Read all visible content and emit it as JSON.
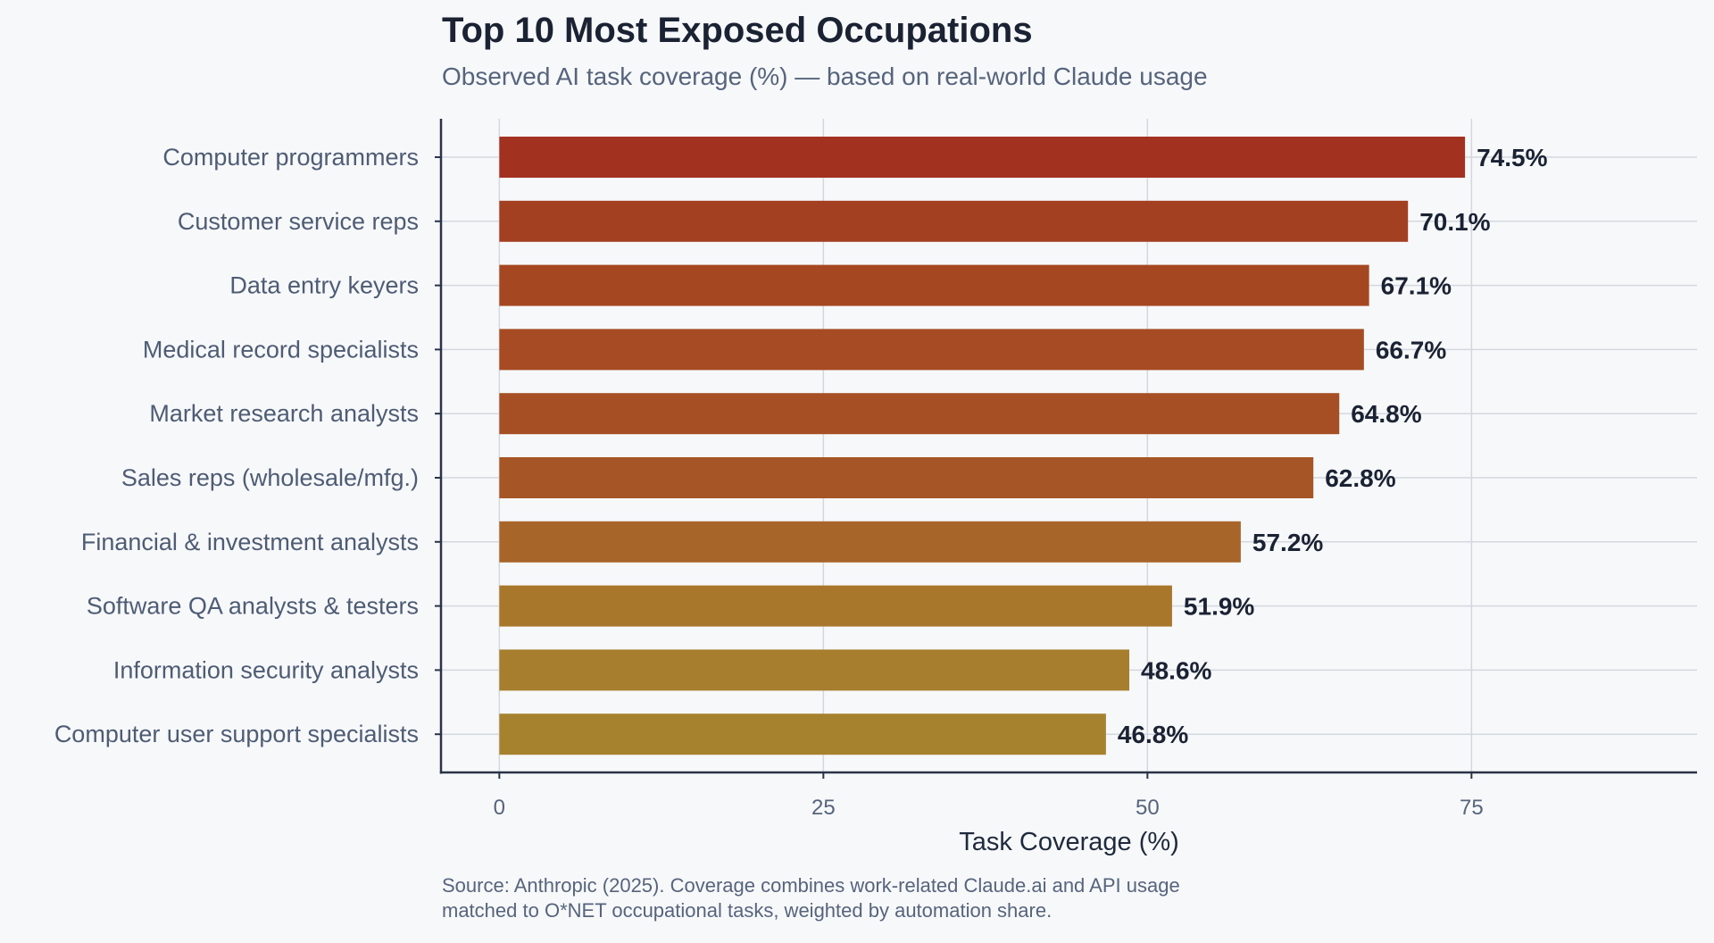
{
  "chart_data": {
    "type": "bar",
    "orientation": "horizontal",
    "title": "Top 10 Most Exposed Occupations",
    "subtitle": "Observed AI task coverage (%) — based on real-world Claude usage",
    "xlabel": "Task Coverage (%)",
    "ylabel": "",
    "xlim": [
      -4.5,
      92.4
    ],
    "xticks": [
      0,
      25,
      50,
      75
    ],
    "xtick_labels": [
      "0",
      "25",
      "50",
      "75"
    ],
    "grid": true,
    "categories": [
      "Computer programmers",
      "Customer service reps",
      "Data entry keyers",
      "Medical record specialists",
      "Market research analysts",
      "Sales reps (wholesale/mfg.)",
      "Financial & investment analysts",
      "Software QA analysts & testers",
      "Information security analysts",
      "Computer user support specialists"
    ],
    "values": [
      74.5,
      70.1,
      67.1,
      66.7,
      64.8,
      62.8,
      57.2,
      51.9,
      48.6,
      46.8
    ],
    "value_labels": [
      "74.5%",
      "70.1%",
      "67.1%",
      "66.7%",
      "64.8%",
      "62.8%",
      "57.2%",
      "51.9%",
      "48.6%",
      "46.8%"
    ],
    "colors": [
      "#A33120",
      "#A34021",
      "#A54822",
      "#A64B23",
      "#A64F24",
      "#A65526",
      "#A8652A",
      "#A8772C",
      "#A67E2E",
      "#A6822F"
    ],
    "source": [
      "Source: Anthropic (2025). Coverage combines work-related Claude.ai and API usage",
      "matched to O*NET occupational tasks, weighted by automation share."
    ]
  },
  "colors": {
    "background": "#F7F8FA",
    "grid": "#D3D8E0",
    "axis": "#2A3447"
  }
}
